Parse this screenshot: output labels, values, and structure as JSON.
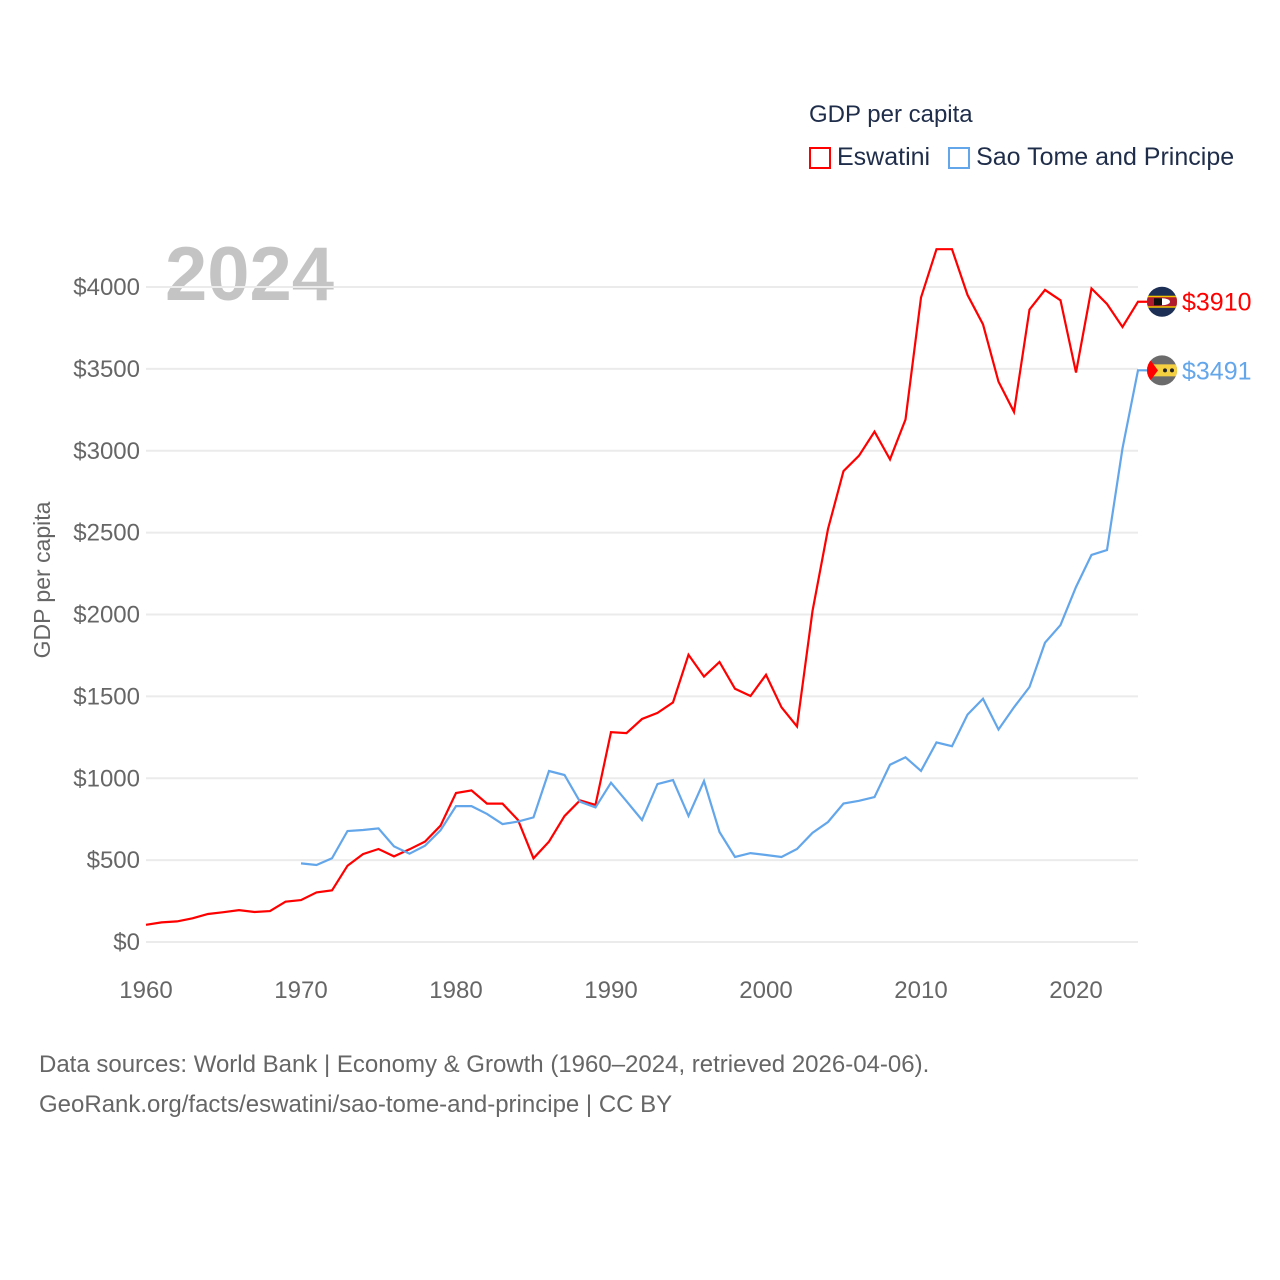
{
  "chart_data": {
    "type": "line",
    "title": "GDP per capita",
    "year_watermark": "2024",
    "ylabel": "GDP per capita",
    "xlabel": "",
    "xlim": [
      1960,
      2024
    ],
    "ylim": [
      0,
      4300
    ],
    "x_ticks": [
      "1960",
      "1970",
      "1980",
      "1990",
      "2000",
      "2010",
      "2020"
    ],
    "x_tick_values": [
      1960,
      1970,
      1980,
      1990,
      2000,
      2010,
      2020
    ],
    "y_ticks": [
      "$0",
      "$500",
      "$1000",
      "$1500",
      "$2000",
      "$2500",
      "$3000",
      "$3500",
      "$4000"
    ],
    "y_tick_values": [
      0,
      500,
      1000,
      1500,
      2000,
      2500,
      3000,
      3500,
      4000
    ],
    "grid": true,
    "legend_position": "top-right",
    "series": [
      {
        "name": "Eswatini",
        "color": "#ff0000",
        "start_year": 1960,
        "end_label": "$3910",
        "values": [
          105,
          120,
          126,
          145,
          171,
          182,
          195,
          183,
          189,
          246,
          256,
          303,
          315,
          466,
          537,
          568,
          523,
          566,
          613,
          710,
          910,
          926,
          845,
          845,
          745,
          511,
          613,
          769,
          865,
          837,
          1281,
          1276,
          1362,
          1399,
          1463,
          1754,
          1621,
          1710,
          1546,
          1502,
          1632,
          1433,
          1316,
          2021,
          2522,
          2876,
          2970,
          3117,
          2947,
          3191,
          3935,
          4231,
          4231,
          3952,
          3772,
          3422,
          3237,
          3862,
          3982,
          3919,
          3478,
          3991,
          3896,
          3756,
          3910
        ]
      },
      {
        "name": "Sao Tome and Principe",
        "color": "#64a6ea",
        "start_year": 1970,
        "end_label": "$3491",
        "values": [
          480,
          470,
          511,
          678,
          684,
          694,
          584,
          539,
          588,
          682,
          830,
          830,
          782,
          720,
          735,
          761,
          1044,
          1020,
          857,
          822,
          973,
          860,
          745,
          965,
          989,
          770,
          983,
          672,
          519,
          543,
          531,
          519,
          568,
          666,
          733,
          846,
          862,
          885,
          1083,
          1128,
          1045,
          1219,
          1196,
          1389,
          1486,
          1298,
          1433,
          1557,
          1828,
          1935,
          2168,
          2364,
          2394,
          3015,
          3491
        ]
      }
    ]
  },
  "footer": {
    "line1": "Data sources: World Bank | Economy & Growth (1960–2024, retrieved 2026-04-06).",
    "line2": "GeoRank.org/facts/eswatini/sao-tome-and-principe | CC BY"
  }
}
